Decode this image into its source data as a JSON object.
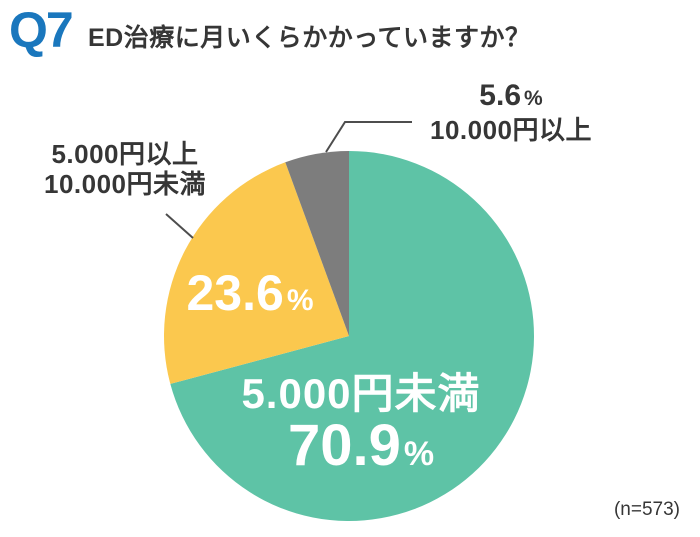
{
  "header": {
    "q_label": "Q7",
    "title": "ED治療に月いくらかかっていますか？"
  },
  "colors": {
    "accent_blue": "#1a77bd",
    "teal": "#5ec3a6",
    "yellow": "#fbc84e",
    "gray": "#7d7d7d",
    "text_dark": "#363636",
    "inside_label_white": "#ffffff"
  },
  "chart_data": {
    "type": "pie",
    "title": "ED治療に月いくらかかっていますか？",
    "direction": "clockwise",
    "start_angle_deg": 0,
    "legend_position": "none",
    "categories": [
      "5.000円未満",
      "5.000円以上10.000円未満",
      "10.000円以上"
    ],
    "values": [
      70.9,
      23.6,
      5.6
    ],
    "unit": "%",
    "colors": [
      "#5ec3a6",
      "#fbc84e",
      "#7d7d7d"
    ],
    "sample_size": "(n=573)",
    "slices": [
      {
        "category": "5.000円未満",
        "value": "70.9",
        "pct_sign": "%",
        "color": "#5ec3a6",
        "label_placement": "inside"
      },
      {
        "category": "5.000円以上10.000円未満",
        "category_line1": "5.000円以上",
        "category_line2": "10.000円未満",
        "value": "23.6",
        "pct_sign": "%",
        "color": "#fbc84e",
        "label_placement": "value-inside-name-outside"
      },
      {
        "category": "10.000円以上",
        "value": "5.6",
        "pct_sign": "%",
        "color": "#7d7d7d",
        "label_placement": "outside-top-right"
      }
    ]
  },
  "footnote": "(n=573)"
}
